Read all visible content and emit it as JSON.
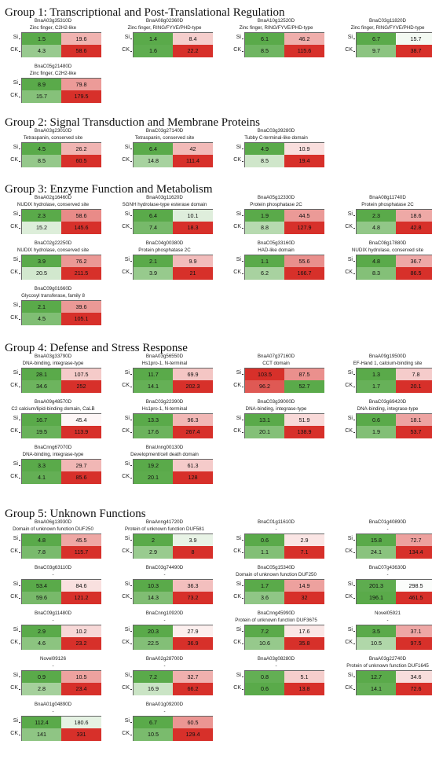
{
  "chart_data": {
    "type": "heatmap",
    "row_labels": [
      "Si",
      "CK"
    ],
    "groups": [
      {
        "title": "Group 1: Transcriptional and Post-Translational Regulation",
        "panels": [
          {
            "gene": "BnaA03g35310D",
            "domain": "Zinc finger, C2H2-like",
            "values": [
              [
                1.5,
                19.6
              ],
              [
                4.3,
                58.6
              ]
            ]
          },
          {
            "gene": "BnaA08g02360D",
            "domain": "Zinc finger, RING/FYVE/PHD-type",
            "values": [
              [
                1.4,
                8.4
              ],
              [
                1.6,
                22.2
              ]
            ]
          },
          {
            "gene": "BnaA10g12520D",
            "domain": "Zinc finger, RING/FYVE/PHD-type",
            "values": [
              [
                6.1,
                46.2
              ],
              [
                8.5,
                115.6
              ]
            ]
          },
          {
            "gene": "BnaC03g11820D",
            "domain": "Zinc finger, RING/FYVE/PHD-type",
            "values": [
              [
                6.7,
                15.7
              ],
              [
                9.7,
                38.7
              ]
            ]
          },
          {
            "gene": "BnaC05g21480D",
            "domain": "Zinc finger, C2H2-like",
            "values": [
              [
                8.9,
                79.8
              ],
              [
                15.7,
                179.5
              ]
            ]
          }
        ]
      },
      {
        "title": "Group 2: Signal Transduction and Membrane Proteins",
        "panels": [
          {
            "gene": "BnaA03g23010D",
            "domain": "Tetraspanin, conserved site",
            "values": [
              [
                4.5,
                26.2
              ],
              [
                8.5,
                60.5
              ]
            ]
          },
          {
            "gene": "BnaC03g27140D",
            "domain": "Tetraspanin, conserved site",
            "values": [
              [
                6.4,
                42
              ],
              [
                14.8,
                111.4
              ]
            ]
          },
          {
            "gene": "BnaC03g39280D",
            "domain": "Tubby C-terminal-like domain",
            "values": [
              [
                4.9,
                10.9
              ],
              [
                8.5,
                19.4
              ]
            ]
          }
        ]
      },
      {
        "title": "Group 3: Enzyme Function and Metabolism",
        "panels": [
          {
            "gene": "BnaA02g16460D",
            "domain": "NUDIX hydrolase, conserved site",
            "values": [
              [
                2.3,
                58.6
              ],
              [
                15.2,
                145.6
              ]
            ]
          },
          {
            "gene": "BnaA03g11620D",
            "domain": "SGNH hydrolase-type esterase domain",
            "values": [
              [
                6.4,
                10.1
              ],
              [
                7.4,
                18.3
              ]
            ]
          },
          {
            "gene": "BnaA05g12330D",
            "domain": "Protein phosphatase 2C",
            "values": [
              [
                1.9,
                44.5
              ],
              [
                8.8,
                127.9
              ]
            ]
          },
          {
            "gene": "BnaA08g11740D",
            "domain": "Protein phosphatase 2C",
            "values": [
              [
                2.3,
                18.6
              ],
              [
                4.8,
                42.8
              ]
            ]
          },
          {
            "gene": "BnaC02g22250D",
            "domain": "NUDIX hydrolase, conserved site",
            "values": [
              [
                3.9,
                76.2
              ],
              [
                20.5,
                211.5
              ]
            ]
          },
          {
            "gene": "BnaC04g00380D",
            "domain": "Protein phosphatase 2C",
            "values": [
              [
                2.1,
                9.9
              ],
              [
                3.9,
                21
              ]
            ]
          },
          {
            "gene": "BnaC05g33160D",
            "domain": "HAD-like domain",
            "values": [
              [
                1.1,
                55.6
              ],
              [
                6.2,
                166.7
              ]
            ]
          },
          {
            "gene": "BnaC08g17880D",
            "domain": "NUDIX hydrolase, conserved site",
            "values": [
              [
                4.8,
                36.7
              ],
              [
                8.3,
                86.5
              ]
            ]
          },
          {
            "gene": "BnaC09g01660D",
            "domain": "Glycosyl transferase, family 8",
            "values": [
              [
                2.1,
                39.6
              ],
              [
                4.5,
                105.1
              ]
            ]
          }
        ]
      },
      {
        "title": "Group 4: Defense and Stress Response",
        "panels": [
          {
            "gene": "BnaA03g33790D",
            "domain": "DNA-binding, integrase-type",
            "values": [
              [
                28.1,
                107.5
              ],
              [
                34.6,
                252
              ]
            ]
          },
          {
            "gene": "BnaA03g56550D",
            "domain": "Hs1pro-1, N-terminal",
            "values": [
              [
                11.7,
                69.9
              ],
              [
                14.1,
                202.3
              ]
            ]
          },
          {
            "gene": "BnaA07g37160D",
            "domain": "CCT domain",
            "values": [
              [
                103.5,
                87.5
              ],
              [
                96.2,
                52.7
              ]
            ]
          },
          {
            "gene": "BnaA09g19500D",
            "domain": "EF-Hand 1, calcium-binding site",
            "values": [
              [
                1.3,
                7.8
              ],
              [
                1.7,
                20.1
              ]
            ]
          },
          {
            "gene": "BnaA09g48570D",
            "domain": "C2 calcium/lipid-binding domain, CaLB",
            "values": [
              [
                16.7,
                45.4
              ],
              [
                19.5,
                113.9
              ]
            ]
          },
          {
            "gene": "BnaC03g22390D",
            "domain": "Hs1pro-1, N-terminal",
            "values": [
              [
                13.3,
                96.3
              ],
              [
                17.6,
                267.4
              ]
            ]
          },
          {
            "gene": "BnaC03g39000D",
            "domain": "DNA-binding, integrase-type",
            "values": [
              [
                13.1,
                51.9
              ],
              [
                20.1,
                138.9
              ]
            ]
          },
          {
            "gene": "BnaC03g69420D",
            "domain": "DNA-binding, integrase-type",
            "values": [
              [
                0.6,
                18.1
              ],
              [
                1.9,
                53.7
              ]
            ]
          },
          {
            "gene": "BnaCnng67070D",
            "domain": "DNA-binding, integrase-type",
            "values": [
              [
                3.3,
                29.7
              ],
              [
                4.1,
                85.6
              ]
            ]
          },
          {
            "gene": "BnaUnng00130D",
            "domain": "Development/cell death domain",
            "values": [
              [
                19.2,
                61.3
              ],
              [
                20.1,
                128
              ]
            ]
          }
        ]
      },
      {
        "title": "Group 5: Unknown Functions",
        "panels": [
          {
            "gene": "BnaA06g13930D",
            "domain": "Domain of unknown function DUF250",
            "values": [
              [
                4.8,
                45.5
              ],
              [
                7.8,
                115.7
              ]
            ]
          },
          {
            "gene": "BnaAnng41720D",
            "domain": "Protein of unknown function DUF581",
            "values": [
              [
                2,
                3.9
              ],
              [
                2.9,
                8
              ]
            ]
          },
          {
            "gene": "BnaC01g11610D",
            "domain": "-",
            "values": [
              [
                0.6,
                2.9
              ],
              [
                1.1,
                7.1
              ]
            ]
          },
          {
            "gene": "BnaC01g40890D",
            "domain": "-",
            "values": [
              [
                15.8,
                72.7
              ],
              [
                24.1,
                134.4
              ]
            ]
          },
          {
            "gene": "BnaC03g63110D",
            "domain": "-",
            "values": [
              [
                53.4,
                84.6
              ],
              [
                59.6,
                121.2
              ]
            ]
          },
          {
            "gene": "BnaC03g74490D",
            "domain": "-",
            "values": [
              [
                10.3,
                36.3
              ],
              [
                14.3,
                73.2
              ]
            ]
          },
          {
            "gene": "BnaC05g15340D",
            "domain": "Domain of unknown function DUF250",
            "values": [
              [
                1.7,
                14.9
              ],
              [
                3.6,
                32
              ]
            ]
          },
          {
            "gene": "BnaC07g43630D",
            "domain": "-",
            "values": [
              [
                201.3,
                298.5
              ],
              [
                196.1,
                461.5
              ]
            ]
          },
          {
            "gene": "BnaC09g11480D",
            "domain": "-",
            "values": [
              [
                2.9,
                10.2
              ],
              [
                4.6,
                23.2
              ]
            ]
          },
          {
            "gene": "BnaCnng10920D",
            "domain": "-",
            "values": [
              [
                20.3,
                27.9
              ],
              [
                22.5,
                36.9
              ]
            ]
          },
          {
            "gene": "BnaCnng45990D",
            "domain": "Protein of unknown function DUF3675",
            "values": [
              [
                7.2,
                17.6
              ],
              [
                10.6,
                35.8
              ]
            ]
          },
          {
            "gene": "Novel05921",
            "domain": "-",
            "values": [
              [
                3.5,
                37.1
              ],
              [
                10.5,
                97.5
              ]
            ]
          },
          {
            "gene": "Novel09126",
            "domain": "-",
            "values": [
              [
                0.9,
                10.5
              ],
              [
                2.8,
                23.4
              ]
            ]
          },
          {
            "gene": "BnaA02g28700D",
            "domain": "-",
            "values": [
              [
                7.2,
                32.7
              ],
              [
                16.9,
                66.2
              ]
            ]
          },
          {
            "gene": "BnaA03g08280D",
            "domain": "-",
            "values": [
              [
                0.8,
                5.1
              ],
              [
                0.6,
                13.8
              ]
            ]
          },
          {
            "gene": "BnaA03g22740D",
            "domain": "Protein of unknown function DUF1645",
            "values": [
              [
                12.7,
                34.6
              ],
              [
                14.1,
                72.6
              ]
            ]
          },
          {
            "gene": "BnaA01g04890D",
            "domain": "-",
            "values": [
              [
                112.4,
                180.6
              ],
              [
                141,
                331
              ]
            ]
          },
          {
            "gene": "BnaA01g09200D",
            "domain": "-",
            "values": [
              [
                6.7,
                60.5
              ],
              [
                10.5,
                129.4
              ]
            ]
          }
        ]
      }
    ],
    "colors": {
      "low": "#5aaa4a",
      "mid": "#ffffff",
      "high": "#d7302a"
    }
  }
}
